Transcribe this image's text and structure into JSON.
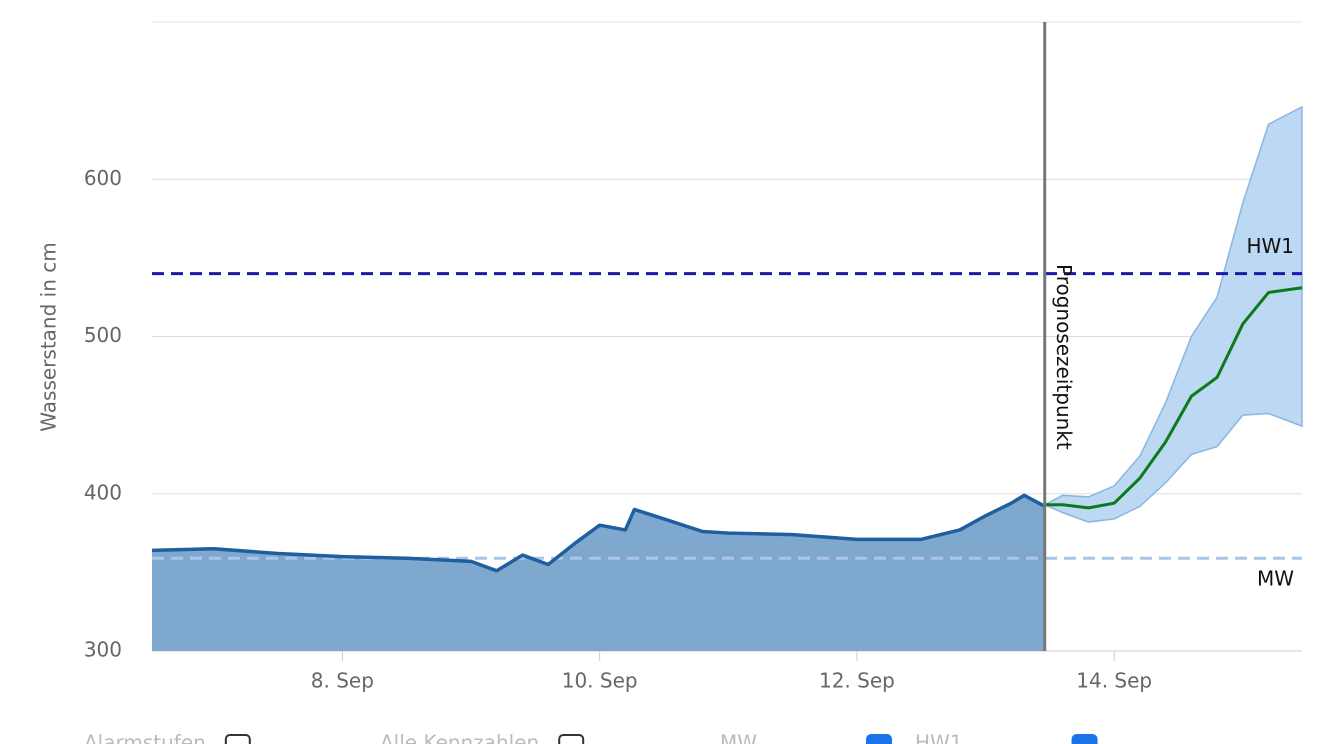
{
  "chart_data": {
    "type": "area",
    "y_label": "Wasserstand in cm",
    "ylim": [
      300,
      700
    ],
    "yticks": [
      300,
      400,
      500,
      600
    ],
    "xlim": [
      6.52,
      15.46
    ],
    "xticks": [
      {
        "value": 8,
        "label": "8. Sep"
      },
      {
        "value": 10,
        "label": "10. Sep"
      },
      {
        "value": 12,
        "label": "12. Sep"
      },
      {
        "value": 14,
        "label": "14. Sep"
      }
    ],
    "grid": true,
    "observed": {
      "color": "#1f5fa0",
      "fill": "#7fa8cf",
      "x": [
        6.52,
        7.0,
        7.5,
        8.0,
        8.5,
        9.0,
        9.2,
        9.4,
        9.6,
        9.8,
        10.0,
        10.2,
        10.27,
        10.5,
        10.8,
        11.0,
        11.5,
        12.0,
        12.5,
        12.8,
        13.0,
        13.2,
        13.3,
        13.46
      ],
      "values": [
        364,
        365,
        362,
        360,
        359,
        357,
        351,
        361,
        355,
        368,
        380,
        377,
        390,
        384,
        376,
        375,
        374,
        371,
        371,
        377,
        386,
        394,
        399,
        392
      ]
    },
    "forecast": {
      "color": "#0a7a1a",
      "band_color": "#bcd8f3",
      "band_edge": "#8ab6e3",
      "x": [
        13.46,
        13.6,
        13.8,
        14.0,
        14.2,
        14.4,
        14.6,
        14.8,
        15.0,
        15.2,
        15.46
      ],
      "values": [
        393,
        393,
        391,
        394,
        410,
        433,
        462,
        474,
        508,
        528,
        531
      ],
      "lower": [
        393,
        388,
        382,
        384,
        392,
        407,
        425,
        430,
        450,
        451,
        443
      ],
      "upper": [
        393,
        399,
        398,
        405,
        424,
        458,
        500,
        525,
        585,
        635,
        646
      ]
    },
    "forecast_time": {
      "x": 13.46,
      "label": "Prognosezeitpunkt"
    },
    "reference_lines": [
      {
        "label": "HW1",
        "value": 540,
        "color": "#1a1aa6"
      },
      {
        "label": "MW",
        "value": 359,
        "color": "#a9c6ea"
      }
    ],
    "toggles": [
      {
        "label": "Alarmstufen",
        "checked": false
      },
      {
        "label": "Alle Kennzahlen",
        "checked": false
      },
      {
        "label": "MW",
        "checked": true
      },
      {
        "label": "HW1",
        "checked": true
      }
    ]
  }
}
